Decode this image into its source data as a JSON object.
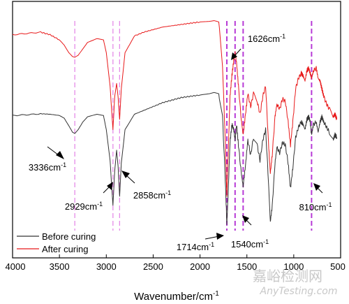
{
  "chart_data": {
    "type": "line",
    "xlabel": "Wavenumber/cm",
    "xlabel_sup": "-1",
    "xlim": [
      4000,
      500
    ],
    "x_ticks": [
      4000,
      3500,
      3000,
      2500,
      2000,
      1500,
      1000,
      500
    ],
    "y_ticks_shown": false,
    "series": [
      {
        "name": "Before curing",
        "color": "#333333",
        "points": [
          [
            4000,
            0.555
          ],
          [
            3850,
            0.558
          ],
          [
            3700,
            0.562
          ],
          [
            3600,
            0.56
          ],
          [
            3500,
            0.555
          ],
          [
            3450,
            0.545
          ],
          [
            3400,
            0.515
          ],
          [
            3360,
            0.49
          ],
          [
            3336,
            0.485
          ],
          [
            3300,
            0.5
          ],
          [
            3250,
            0.53
          ],
          [
            3200,
            0.55
          ],
          [
            3100,
            0.56
          ],
          [
            3030,
            0.555
          ],
          [
            3000,
            0.5
          ],
          [
            2960,
            0.38
          ],
          [
            2929,
            0.205
          ],
          [
            2910,
            0.34
          ],
          [
            2890,
            0.42
          ],
          [
            2875,
            0.36
          ],
          [
            2858,
            0.24
          ],
          [
            2840,
            0.37
          ],
          [
            2800,
            0.5
          ],
          [
            2700,
            0.56
          ],
          [
            2600,
            0.575
          ],
          [
            2500,
            0.59
          ],
          [
            2400,
            0.605
          ],
          [
            2300,
            0.615
          ],
          [
            2200,
            0.625
          ],
          [
            2100,
            0.63
          ],
          [
            2000,
            0.635
          ],
          [
            1900,
            0.64
          ],
          [
            1850,
            0.645
          ],
          [
            1800,
            0.64
          ],
          [
            1760,
            0.55
          ],
          [
            1730,
            0.3
          ],
          [
            1714,
            0.13
          ],
          [
            1700,
            0.25
          ],
          [
            1680,
            0.45
          ],
          [
            1660,
            0.52
          ],
          [
            1640,
            0.5
          ],
          [
            1626,
            0.46
          ],
          [
            1610,
            0.52
          ],
          [
            1590,
            0.44
          ],
          [
            1560,
            0.33
          ],
          [
            1540,
            0.28
          ],
          [
            1515,
            0.36
          ],
          [
            1490,
            0.46
          ],
          [
            1460,
            0.4
          ],
          [
            1430,
            0.47
          ],
          [
            1390,
            0.44
          ],
          [
            1360,
            0.38
          ],
          [
            1330,
            0.46
          ],
          [
            1300,
            0.5
          ],
          [
            1270,
            0.3
          ],
          [
            1250,
            0.14
          ],
          [
            1230,
            0.2
          ],
          [
            1200,
            0.37
          ],
          [
            1180,
            0.43
          ],
          [
            1150,
            0.41
          ],
          [
            1120,
            0.45
          ],
          [
            1090,
            0.44
          ],
          [
            1060,
            0.37
          ],
          [
            1035,
            0.27
          ],
          [
            1010,
            0.35
          ],
          [
            980,
            0.47
          ],
          [
            950,
            0.51
          ],
          [
            920,
            0.53
          ],
          [
            900,
            0.52
          ],
          [
            880,
            0.5
          ],
          [
            860,
            0.54
          ],
          [
            840,
            0.55
          ],
          [
            825,
            0.53
          ],
          [
            810,
            0.48
          ],
          [
            790,
            0.52
          ],
          [
            760,
            0.53
          ],
          [
            740,
            0.49
          ],
          [
            720,
            0.53
          ],
          [
            700,
            0.55
          ],
          [
            680,
            0.53
          ],
          [
            650,
            0.51
          ],
          [
            620,
            0.49
          ],
          [
            580,
            0.46
          ],
          [
            560,
            0.48
          ],
          [
            540,
            0.47
          ]
        ]
      },
      {
        "name": "After curing",
        "color": "#e8191a",
        "points": [
          [
            4000,
            0.87
          ],
          [
            3850,
            0.875
          ],
          [
            3700,
            0.88
          ],
          [
            3600,
            0.87
          ],
          [
            3500,
            0.85
          ],
          [
            3450,
            0.83
          ],
          [
            3400,
            0.8
          ],
          [
            3360,
            0.785
          ],
          [
            3336,
            0.782
          ],
          [
            3300,
            0.79
          ],
          [
            3250,
            0.815
          ],
          [
            3200,
            0.84
          ],
          [
            3100,
            0.855
          ],
          [
            3030,
            0.85
          ],
          [
            3000,
            0.8
          ],
          [
            2960,
            0.67
          ],
          [
            2929,
            0.5
          ],
          [
            2910,
            0.63
          ],
          [
            2890,
            0.68
          ],
          [
            2875,
            0.63
          ],
          [
            2858,
            0.54
          ],
          [
            2840,
            0.66
          ],
          [
            2800,
            0.8
          ],
          [
            2700,
            0.865
          ],
          [
            2600,
            0.88
          ],
          [
            2500,
            0.89
          ],
          [
            2400,
            0.9
          ],
          [
            2300,
            0.905
          ],
          [
            2200,
            0.91
          ],
          [
            2100,
            0.915
          ],
          [
            2000,
            0.92
          ],
          [
            1900,
            0.922
          ],
          [
            1850,
            0.925
          ],
          [
            1800,
            0.92
          ],
          [
            1760,
            0.75
          ],
          [
            1730,
            0.45
          ],
          [
            1714,
            0.24
          ],
          [
            1700,
            0.4
          ],
          [
            1680,
            0.63
          ],
          [
            1660,
            0.71
          ],
          [
            1640,
            0.77
          ],
          [
            1626,
            0.8
          ],
          [
            1610,
            0.76
          ],
          [
            1590,
            0.67
          ],
          [
            1560,
            0.54
          ],
          [
            1540,
            0.48
          ],
          [
            1515,
            0.56
          ],
          [
            1490,
            0.64
          ],
          [
            1460,
            0.59
          ],
          [
            1430,
            0.64
          ],
          [
            1390,
            0.61
          ],
          [
            1360,
            0.56
          ],
          [
            1330,
            0.63
          ],
          [
            1300,
            0.67
          ],
          [
            1270,
            0.45
          ],
          [
            1250,
            0.33
          ],
          [
            1230,
            0.4
          ],
          [
            1200,
            0.55
          ],
          [
            1180,
            0.6
          ],
          [
            1150,
            0.58
          ],
          [
            1120,
            0.62
          ],
          [
            1090,
            0.61
          ],
          [
            1060,
            0.53
          ],
          [
            1035,
            0.44
          ],
          [
            1010,
            0.53
          ],
          [
            980,
            0.66
          ],
          [
            950,
            0.7
          ],
          [
            920,
            0.72
          ],
          [
            900,
            0.71
          ],
          [
            880,
            0.69
          ],
          [
            860,
            0.73
          ],
          [
            840,
            0.74
          ],
          [
            825,
            0.72
          ],
          [
            810,
            0.7
          ],
          [
            790,
            0.73
          ],
          [
            760,
            0.74
          ],
          [
            740,
            0.7
          ],
          [
            720,
            0.69
          ],
          [
            700,
            0.66
          ],
          [
            680,
            0.63
          ],
          [
            650,
            0.6
          ],
          [
            620,
            0.58
          ],
          [
            580,
            0.55
          ],
          [
            560,
            0.56
          ],
          [
            540,
            0.54
          ]
        ]
      }
    ],
    "marker_lines": [
      {
        "x": 3336,
        "color": "#e58be8"
      },
      {
        "x": 2929,
        "color": "#e58be8"
      },
      {
        "x": 2858,
        "color": "#e58be8"
      },
      {
        "x": 1714,
        "color": "#b73ad6"
      },
      {
        "x": 1626,
        "color": "#b73ad6"
      },
      {
        "x": 1540,
        "color": "#b73ad6"
      },
      {
        "x": 810,
        "color": "#b73ad6"
      }
    ],
    "annotations": [
      {
        "text": "3336cm",
        "sup": "-1",
        "x": 3336
      },
      {
        "text": "2929cm",
        "sup": "-1",
        "x": 2929
      },
      {
        "text": "2858cm",
        "sup": "-1",
        "x": 2858
      },
      {
        "text": "1626cm",
        "sup": "-1",
        "x": 1626
      },
      {
        "text": "1714cm",
        "sup": "-1",
        "x": 1714
      },
      {
        "text": "1540cm",
        "sup": "-1",
        "x": 1540
      },
      {
        "text": "810cm",
        "sup": "-1",
        "x": 810
      }
    ],
    "legend_position": "bottom-left"
  },
  "watermark": {
    "line1": "嘉峪检测网",
    "line2": "AnyTesting.com"
  }
}
